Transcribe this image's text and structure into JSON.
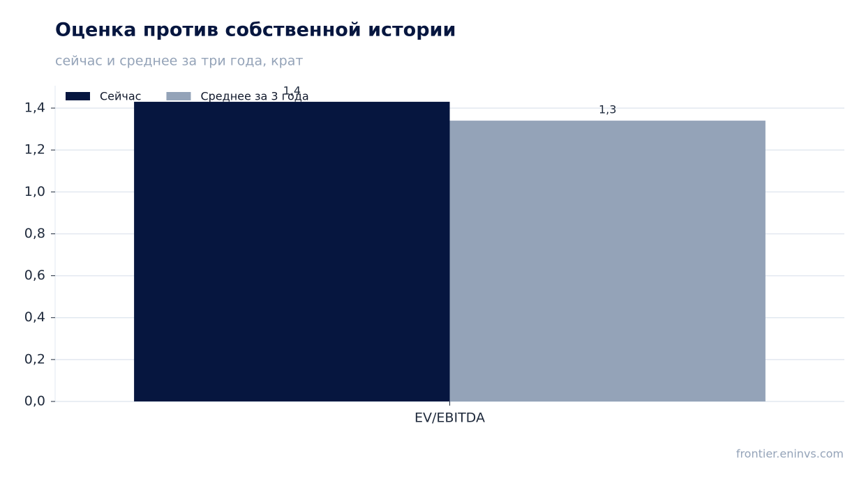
{
  "chart_data": {
    "type": "bar",
    "title": "Оценка против собственной истории",
    "subtitle": "сейчас и среднее за три года, крат",
    "source": "frontier.eninvs.com",
    "categories": [
      "EV/EBITDA"
    ],
    "series": [
      {
        "name": "Сейчас",
        "color": "#06163f",
        "values": [
          1.43
        ],
        "value_labels": [
          "1,4"
        ]
      },
      {
        "name": "Среднее за 3 года",
        "color": "#94a3b8",
        "values": [
          1.34
        ],
        "value_labels": [
          "1,3"
        ]
      }
    ],
    "ylim": [
      0,
      1.5
    ],
    "yticks": [
      {
        "value": 0,
        "label": "0,0"
      },
      {
        "value": 0.2,
        "label": "0,2"
      },
      {
        "value": 0.4,
        "label": "0,4"
      },
      {
        "value": 0.6,
        "label": "0,6"
      },
      {
        "value": 0.8,
        "label": "0,8"
      },
      {
        "value": 1.0,
        "label": "1,0"
      },
      {
        "value": 1.2,
        "label": "1,2"
      },
      {
        "value": 1.4,
        "label": "1,4"
      }
    ],
    "grid": true,
    "legend": "upper-left"
  }
}
